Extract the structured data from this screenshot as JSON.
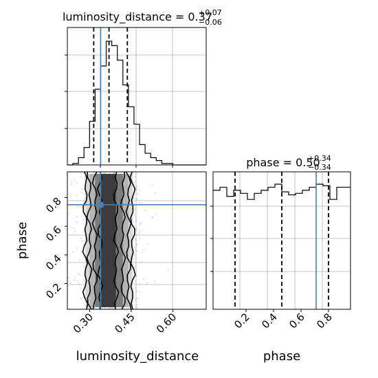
{
  "chart_data": {
    "type": "corner",
    "parameters": [
      "luminosity_distance",
      "phase"
    ],
    "truths": {
      "luminosity_distance": 0.34,
      "phase": 0.75
    },
    "ticks": {
      "luminosity_distance": {
        "values": [
          0.3,
          0.45,
          0.6
        ],
        "labels": [
          "0.30",
          "0.45",
          "0.60"
        ]
      },
      "phase": {
        "values": [
          0.2,
          0.4,
          0.6,
          0.8
        ],
        "labels": [
          "0.2",
          "0.4",
          "0.6",
          "0.8"
        ]
      }
    },
    "xlabels": {
      "luminosity_distance": "luminosity_distance",
      "phase": "phase"
    },
    "ylabel": "phase",
    "ranges": {
      "luminosity_distance": [
        0.22,
        0.72
      ],
      "phase": [
        0.0,
        1.0
      ]
    },
    "marginals": [
      {
        "parameter": "luminosity_distance",
        "title": {
          "main": "luminosity_distance = 0.37",
          "sup": "+0.07",
          "sub": "−0.06"
        },
        "quantiles": [
          0.315,
          0.37,
          0.436
        ],
        "bin_edges": [
          0.22,
          0.24,
          0.26,
          0.28,
          0.3,
          0.32,
          0.34,
          0.36,
          0.38,
          0.4,
          0.42,
          0.44,
          0.46,
          0.48,
          0.5,
          0.52,
          0.54,
          0.56,
          0.58,
          0.6,
          0.62,
          0.64,
          0.66,
          0.68,
          0.7,
          0.72
        ],
        "counts": [
          0,
          1,
          5,
          12,
          30,
          52,
          68,
          85,
          82,
          72,
          55,
          40,
          28,
          14,
          8,
          5,
          3,
          1,
          1,
          0,
          0,
          0,
          0,
          0,
          0
        ]
      },
      {
        "parameter": "phase",
        "title": {
          "main": "phase = 0.50",
          "sup": "+0.34",
          "sub": "−0.34"
        },
        "quantiles": [
          0.16,
          0.5,
          0.84
        ],
        "bin_edges": [
          0.0,
          0.05,
          0.1,
          0.15,
          0.2,
          0.25,
          0.3,
          0.35,
          0.4,
          0.45,
          0.5,
          0.55,
          0.6,
          0.65,
          0.7,
          0.75,
          0.8,
          0.85,
          0.9,
          0.95,
          1.0
        ],
        "counts": [
          78,
          80,
          74,
          78,
          76,
          72,
          76,
          78,
          80,
          82,
          77,
          75,
          76,
          78,
          80,
          82,
          81,
          72,
          80,
          80
        ]
      }
    ],
    "joint": {
      "x": "luminosity_distance",
      "y": "phase",
      "contour_levels": 4
    }
  }
}
